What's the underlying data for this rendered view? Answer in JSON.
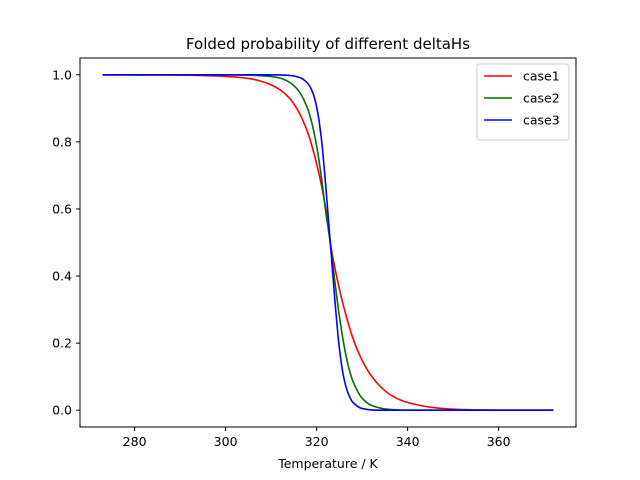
{
  "chart_data": {
    "type": "line",
    "title": "Folded probability of different deltaHs",
    "xlabel": "Temperature / K",
    "ylabel": "",
    "xlim": [
      268,
      377
    ],
    "ylim": [
      -0.05,
      1.05
    ],
    "xticks": [
      280,
      300,
      320,
      340,
      360
    ],
    "yticks": [
      0.0,
      0.2,
      0.4,
      0.6,
      0.8,
      1.0
    ],
    "ytick_labels": [
      "0.0",
      "0.2",
      "0.4",
      "0.6",
      "0.8",
      "1.0"
    ],
    "grid": false,
    "legend_position": "top-right",
    "series": [
      {
        "name": "case1",
        "color": "#ff0000",
        "x": [
          273,
          290,
          300,
          305,
          308,
          310,
          312,
          314,
          316,
          318,
          320,
          322,
          323,
          324,
          326,
          328,
          330,
          332,
          334,
          336,
          338,
          340,
          345,
          350,
          355,
          360,
          372
        ],
        "y": [
          1.0,
          0.999,
          0.995,
          0.989,
          0.98,
          0.97,
          0.955,
          0.931,
          0.891,
          0.83,
          0.735,
          0.602,
          0.5,
          0.425,
          0.306,
          0.214,
          0.149,
          0.103,
          0.071,
          0.048,
          0.033,
          0.023,
          0.009,
          0.003,
          0.001,
          0.0,
          0.0
        ]
      },
      {
        "name": "case2",
        "color": "#007000",
        "x": [
          273,
          300,
          305,
          310,
          312,
          314,
          316,
          318,
          319,
          320,
          321,
          322,
          323,
          324,
          325,
          326,
          327,
          328,
          330,
          332,
          335,
          340,
          372
        ],
        "y": [
          1.0,
          1.0,
          0.999,
          0.995,
          0.99,
          0.978,
          0.953,
          0.9,
          0.854,
          0.788,
          0.7,
          0.592,
          0.5,
          0.385,
          0.28,
          0.195,
          0.13,
          0.086,
          0.036,
          0.015,
          0.004,
          0.0,
          0.0
        ]
      },
      {
        "name": "case3",
        "color": "#0000ff",
        "x": [
          273,
          310,
          314,
          316,
          317,
          318,
          319,
          320,
          321,
          322,
          323,
          324,
          325,
          326,
          327,
          328,
          330,
          332,
          335,
          372
        ],
        "y": [
          1.0,
          1.0,
          0.998,
          0.993,
          0.987,
          0.975,
          0.952,
          0.905,
          0.815,
          0.67,
          0.5,
          0.33,
          0.185,
          0.095,
          0.048,
          0.023,
          0.005,
          0.001,
          0.0,
          0.0
        ]
      }
    ]
  }
}
